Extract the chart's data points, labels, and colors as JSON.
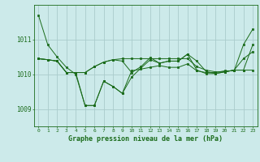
{
  "title": "Graphe pression niveau de la mer (hPa)",
  "background_color": "#cceaea",
  "grid_color": "#aacccc",
  "line_color": "#1a6b1a",
  "xlim": [
    -0.5,
    23.5
  ],
  "ylim": [
    1008.5,
    1012.0
  ],
  "yticks": [
    1009,
    1010,
    1011
  ],
  "xticks": [
    0,
    1,
    2,
    3,
    4,
    5,
    6,
    7,
    8,
    9,
    10,
    11,
    12,
    13,
    14,
    15,
    16,
    17,
    18,
    19,
    20,
    21,
    22,
    23
  ],
  "series": [
    [
      1011.7,
      1010.85,
      1010.5,
      1010.2,
      1010.0,
      1009.1,
      1009.1,
      1009.8,
      1009.65,
      1009.45,
      1010.1,
      1010.15,
      1010.2,
      1010.25,
      1010.2,
      1010.2,
      1010.3,
      1010.1,
      1010.05,
      1010.05,
      1010.1,
      1010.1,
      1010.85,
      1011.3
    ],
    [
      1010.45,
      1010.42,
      1010.38,
      1010.05,
      1010.05,
      1010.05,
      1010.22,
      1010.35,
      1010.42,
      1010.45,
      1010.45,
      1010.45,
      1010.45,
      1010.45,
      1010.45,
      1010.45,
      1010.45,
      1010.22,
      1010.12,
      1010.07,
      1010.07,
      1010.12,
      1010.45,
      1010.65
    ],
    [
      1010.45,
      1010.42,
      1010.38,
      1010.05,
      1010.05,
      1010.05,
      1010.22,
      1010.35,
      1010.42,
      1010.38,
      1010.05,
      1010.22,
      1010.48,
      1010.32,
      1010.38,
      1010.38,
      1010.58,
      1010.38,
      1010.08,
      1010.02,
      1010.07,
      1010.12,
      1010.12,
      1010.12
    ],
    [
      1010.45,
      1010.42,
      1010.38,
      1010.05,
      1010.05,
      1009.1,
      1009.1,
      1009.8,
      1009.65,
      1009.45,
      1009.92,
      1010.18,
      1010.42,
      1010.32,
      1010.38,
      1010.38,
      1010.58,
      1010.12,
      1010.02,
      1010.02,
      1010.07,
      1010.12,
      1010.12,
      1010.85
    ]
  ]
}
